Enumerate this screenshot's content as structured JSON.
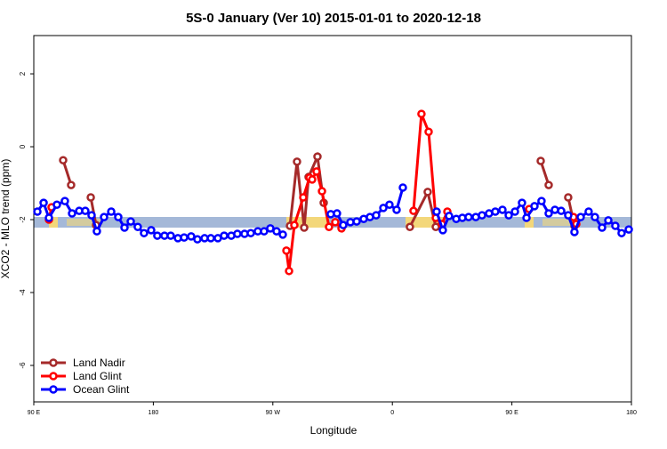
{
  "chart_data": {
    "type": "line",
    "title": "5S-0 January (Ver 10)   2015-01-01 to 2020-12-18",
    "x_label": "Longitude",
    "y_label": "XCO2 - MLO trend (ppm)",
    "xlim": [
      90,
      540
    ],
    "xticks": [
      {
        "value": 90,
        "label": "90 E"
      },
      {
        "value": 180,
        "label": "180"
      },
      {
        "value": 270,
        "label": "90 W"
      },
      {
        "value": 360,
        "label": "0"
      },
      {
        "value": 450,
        "label": "90 E"
      },
      {
        "value": 540,
        "label": "180"
      }
    ],
    "ylim": [
      -7,
      3.05
    ],
    "yticks": [
      -6,
      -4,
      -2,
      0,
      2
    ],
    "legend": "bottom-left",
    "series": [
      {
        "name": "Land Nadir",
        "color": "#a52a2a",
        "x": [
          112.1,
          118.1,
          120,
          132.9,
          136.9,
          200,
          282.9,
          288.2,
          293.6,
          296.9,
          303.6,
          308.3,
          340,
          373.2,
          386.6,
          392.7,
          430,
          471.7,
          477.7,
          490,
          492.4,
          497.1
        ],
        "values": [
          -0.37,
          -1.05,
          null,
          -1.39,
          -2.15,
          null,
          -2.17,
          -0.41,
          -2.22,
          -0.83,
          -0.27,
          -1.54,
          null,
          -2.2,
          -1.24,
          -2.2,
          null,
          -0.39,
          -1.05,
          null,
          -1.39,
          -2.17
        ]
      },
      {
        "name": "Land Glint",
        "color": "#ff0000",
        "x": [
          101.4,
          103.4,
          110,
          280.2,
          282.2,
          286.2,
          292.9,
          297.6,
          299.6,
          302.9,
          307.0,
          312.3,
          317.0,
          321.7,
          340,
          375.9,
          381.9,
          387.3,
          392.7,
          397.3,
          401.4,
          430,
          463.0,
          480,
          496.4,
          498.5
        ],
        "values": [
          -2.0,
          -1.66,
          null,
          -2.85,
          -3.41,
          -2.15,
          -1.39,
          -0.85,
          -0.9,
          -0.68,
          -1.22,
          -2.2,
          -2.07,
          -2.24,
          null,
          -1.76,
          0.9,
          0.41,
          -1.95,
          -2.12,
          -1.78,
          null,
          -1.71,
          null,
          -1.93,
          -2.12
        ]
      },
      {
        "name": "Ocean Glint",
        "color": "#0000ff",
        "x": [
          92.7,
          97.4,
          101.4,
          107.4,
          113.4,
          118.8,
          124.2,
          128.8,
          133.5,
          137.5,
          142.9,
          148.3,
          153.6,
          158.3,
          163.0,
          168.3,
          173.0,
          178.4,
          183.0,
          188.4,
          193.1,
          198.5,
          203.2,
          208.5,
          213.2,
          218.6,
          223.3,
          228.6,
          233.3,
          238.7,
          243.3,
          248.7,
          253.4,
          258.7,
          263.4,
          268.1,
          272.8,
          277.5,
          310,
          313.6,
          318.3,
          323.0,
          328.4,
          333.1,
          338.4,
          343.1,
          347.8,
          353.2,
          357.8,
          363.2,
          367.9,
          380,
          393.3,
          398.0,
          402.7,
          408.1,
          412.7,
          417.4,
          422.8,
          427.5,
          432.8,
          437.5,
          442.9,
          447.6,
          452.3,
          457.6,
          461.0,
          467.0,
          472.3,
          477.7,
          482.4,
          487.1,
          492.4,
          497.1,
          501.8,
          507.8,
          512.5,
          517.9,
          522.6,
          527.9,
          532.6,
          538.0
        ],
        "values": [
          -1.78,
          -1.54,
          -1.95,
          -1.59,
          -1.49,
          -1.83,
          -1.76,
          -1.76,
          -1.88,
          -2.32,
          -1.93,
          -1.78,
          -1.93,
          -2.22,
          -2.05,
          -2.2,
          -2.37,
          -2.29,
          -2.44,
          -2.44,
          -2.44,
          -2.51,
          -2.49,
          -2.46,
          -2.54,
          -2.51,
          -2.51,
          -2.51,
          -2.44,
          -2.44,
          -2.39,
          -2.39,
          -2.37,
          -2.32,
          -2.32,
          -2.24,
          -2.32,
          -2.41,
          null,
          -1.85,
          -1.83,
          -2.15,
          -2.07,
          -2.05,
          -1.98,
          -1.93,
          -1.88,
          -1.68,
          -1.59,
          -1.73,
          -1.12,
          null,
          -1.78,
          -2.29,
          -1.9,
          -1.98,
          -1.95,
          -1.93,
          -1.93,
          -1.88,
          -1.83,
          -1.78,
          -1.73,
          -1.88,
          -1.78,
          -1.54,
          -1.95,
          -1.63,
          -1.49,
          -1.83,
          -1.73,
          -1.76,
          -1.88,
          -2.34,
          -1.93,
          -1.78,
          -1.93,
          -2.22,
          -2.02,
          -2.17,
          -2.37,
          -2.27
        ]
      }
    ]
  }
}
